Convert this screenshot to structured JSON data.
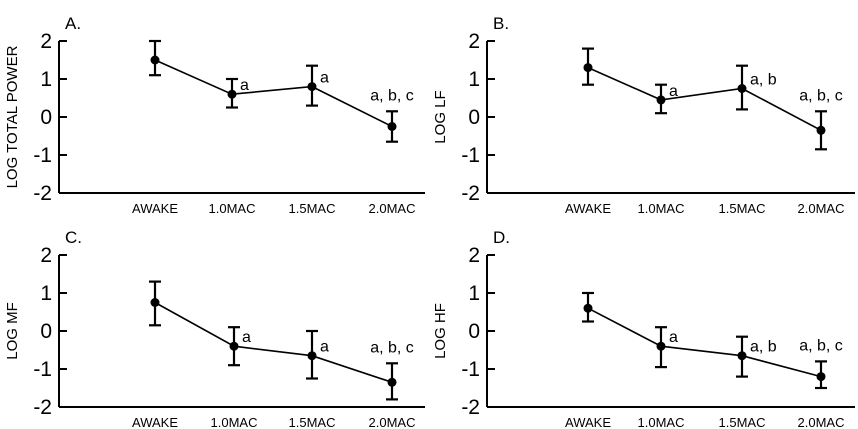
{
  "chart_data": [
    {
      "type": "line",
      "panel_label": "A.",
      "ylabel": "LOG TOTAL POWER",
      "categories": [
        "AWAKE",
        "1.0MAC",
        "1.5MAC",
        "2.0MAC"
      ],
      "yticks": [
        "2",
        "1",
        "0",
        "-1",
        "-2"
      ],
      "ylim": [
        -2,
        2
      ],
      "values": [
        1.5,
        0.6,
        0.8,
        -0.25
      ],
      "err_low": [
        1.1,
        0.25,
        0.3,
        -0.65
      ],
      "err_high": [
        2.0,
        1.0,
        1.35,
        0.15
      ],
      "annotations": [
        "",
        "a",
        "a",
        "a, b, c"
      ]
    },
    {
      "type": "line",
      "panel_label": "B.",
      "ylabel": "LOG LF",
      "categories": [
        "AWAKE",
        "1.0MAC",
        "1.5MAC",
        "2.0MAC"
      ],
      "yticks": [
        "2",
        "1",
        "0",
        "-1",
        "-2"
      ],
      "ylim": [
        -2,
        2
      ],
      "values": [
        1.3,
        0.45,
        0.75,
        -0.35
      ],
      "err_low": [
        0.85,
        0.1,
        0.2,
        -0.85
      ],
      "err_high": [
        1.8,
        0.85,
        1.35,
        0.15
      ],
      "annotations": [
        "",
        "a",
        "a, b",
        "a, b, c"
      ]
    },
    {
      "type": "line",
      "panel_label": "C.",
      "ylabel": "LOG MF",
      "categories": [
        "AWAKE",
        "1.0MAC",
        "1.5MAC",
        "2.0MAC"
      ],
      "yticks": [
        "2",
        "1",
        "0",
        "-1",
        "-2"
      ],
      "ylim": [
        -2,
        2
      ],
      "values": [
        0.75,
        -0.4,
        -0.65,
        -1.35
      ],
      "err_low": [
        0.15,
        -0.9,
        -1.25,
        -1.8
      ],
      "err_high": [
        1.3,
        0.1,
        0.0,
        -0.85
      ],
      "annotations": [
        "",
        "a",
        "a",
        "a, b, c"
      ]
    },
    {
      "type": "line",
      "panel_label": "D.",
      "ylabel": "LOG HF",
      "categories": [
        "AWAKE",
        "1.0MAC",
        "1.5MAC",
        "2.0MAC"
      ],
      "yticks": [
        "2",
        "1",
        "0",
        "-1",
        "-2"
      ],
      "ylim": [
        -2,
        2
      ],
      "values": [
        0.6,
        -0.4,
        -0.65,
        -1.2
      ],
      "err_low": [
        0.25,
        -0.95,
        -1.2,
        -1.5
      ],
      "err_high": [
        1.0,
        0.1,
        -0.15,
        -0.8
      ],
      "annotations": [
        "",
        "a",
        "a, b",
        "a, b, c"
      ]
    }
  ]
}
